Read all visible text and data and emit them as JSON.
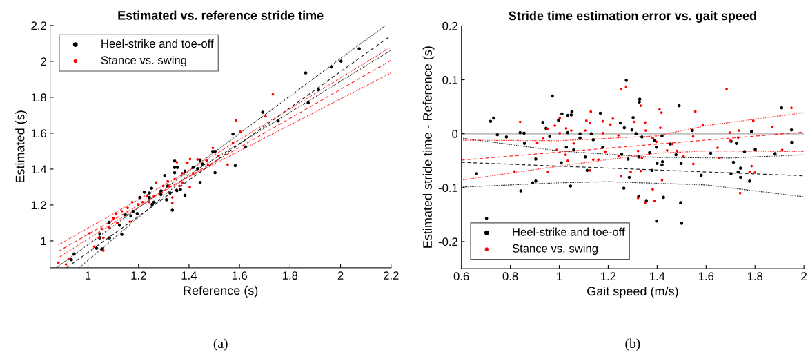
{
  "chart_data": [
    {
      "type": "scatter",
      "title": "Estimated vs. reference stride time",
      "xlabel": "Reference (s)",
      "ylabel": "Estimated (s)",
      "annotations": [
        "(a)"
      ],
      "xlim": [
        0.85,
        2.2
      ],
      "ylim": [
        0.85,
        2.2
      ],
      "xticks": [
        1,
        1.2,
        1.4,
        1.6,
        1.8,
        2,
        2.2
      ],
      "yticks": [
        1,
        1.2,
        1.4,
        1.6,
        1.8,
        2,
        2.2
      ],
      "grid": false,
      "legend": "top left",
      "marker": "circle",
      "series": [
        {
          "type": "line",
          "color": "#000000",
          "line_style": "dotted",
          "marker": "none",
          "x": [
            0.874,
            1.4,
            2.177
          ],
          "values": [
            0.85,
            1.39,
            2.2
          ]
        },
        {
          "type": "line",
          "color": "#000000",
          "line_style": "dashed",
          "marker": "none",
          "x": [
            0.915,
            2.195
          ],
          "values": [
            0.85,
            2.139
          ]
        },
        {
          "type": "line",
          "color": "#000000",
          "line_style": "dotted",
          "marker": "none",
          "x": [
            0.965,
            1.4,
            2.2
          ],
          "values": [
            0.85,
            1.37,
            2.062
          ]
        },
        {
          "type": "line",
          "color": "#ff0000",
          "line_style": "dotted",
          "marker": "none",
          "x": [
            0.883,
            1.35,
            2.2
          ],
          "values": [
            0.978,
            1.35,
            2.08
          ]
        },
        {
          "type": "line",
          "color": "#ff0000",
          "line_style": "dashed",
          "marker": "none",
          "x": [
            0.883,
            2.2
          ],
          "values": [
            0.942,
            2.006
          ]
        },
        {
          "type": "line",
          "color": "#ff0000",
          "line_style": "dotted",
          "marker": "none",
          "x": [
            0.883,
            1.35,
            2.2
          ],
          "values": [
            0.907,
            1.32,
            1.936
          ]
        },
        {
          "name": "Heel-strike and toe-off",
          "color": "#000000",
          "x": [
            2.074,
            2.002,
            1.963,
            1.862,
            1.913,
            1.872,
            1.753,
            1.692,
            1.623,
            1.574,
            1.583,
            1.503,
            1.503,
            1.494,
            1.444,
            1.453,
            1.444,
            1.434,
            1.416,
            1.343,
            1.343,
            1.354,
            1.343,
            1.384,
            1.384,
            1.304,
            1.334,
            1.352,
            1.325,
            1.311,
            1.289,
            1.252,
            1.243,
            1.254,
            1.223,
            1.205,
            1.195,
            1.17,
            1.125,
            1.134,
            1.085,
            1.047,
            1.034,
            1.055,
            0.934,
            0.945,
            1.084,
            1.148,
            1.289,
            1.316,
            1.366,
            1.261,
            1.243,
            1.047,
            1.179
          ],
          "values": [
            2.071,
            2.001,
            1.968,
            1.936,
            1.842,
            1.769,
            1.668,
            1.717,
            1.524,
            1.595,
            1.419,
            1.38,
            1.499,
            1.499,
            1.45,
            1.428,
            1.325,
            1.402,
            1.409,
            1.445,
            1.409,
            1.409,
            1.38,
            1.389,
            1.254,
            1.364,
            1.171,
            1.28,
            1.267,
            1.229,
            1.258,
            1.293,
            1.267,
            1.203,
            1.271,
            1.242,
            1.152,
            1.139,
            1.087,
            1.036,
            1.017,
            1.039,
            0.959,
            0.955,
            0.895,
            0.927,
            1.103,
            1.145,
            1.278,
            1.306,
            1.287,
            1.216,
            1.242,
            1.017,
            1.165
          ]
        },
        {
          "name": "Stance vs. swing",
          "color": "#ff0000",
          "x": [
            1.732,
            1.703,
            1.585,
            1.603,
            1.574,
            1.553,
            1.494,
            1.515,
            1.475,
            1.434,
            1.404,
            1.394,
            1.352,
            1.416,
            1.373,
            1.403,
            1.334,
            1.343,
            1.316,
            1.298,
            1.27,
            1.261,
            1.234,
            1.216,
            1.198,
            1.175,
            1.157,
            1.134,
            1.111,
            1.101,
            1.116,
            1.084,
            1.054,
            1.061,
            1.061,
            1.025,
            1.006,
            0.924,
            0.913,
            0.883,
            1.334,
            1.362,
            1.375,
            1.243,
            1.166,
            1.043,
            1.47,
            1.32
          ],
          "values": [
            1.817,
            1.694,
            1.672,
            1.608,
            1.546,
            1.425,
            1.518,
            1.473,
            1.422,
            1.454,
            1.456,
            1.434,
            1.438,
            1.377,
            1.377,
            1.299,
            1.21,
            1.344,
            1.332,
            1.306,
            1.325,
            1.248,
            1.248,
            1.216,
            1.203,
            1.216,
            1.184,
            1.165,
            1.152,
            1.126,
            1.1,
            1.075,
            1.068,
            1.017,
            0.946,
            0.968,
            1.042,
            0.901,
            0.869,
            0.879,
            1.242,
            1.306,
            1.325,
            1.216,
            1.107,
            1.017,
            1.447,
            1.306
          ]
        }
      ]
    },
    {
      "type": "scatter",
      "title": "Stride time estimation error vs. gait speed",
      "xlabel": "Gait speed (m/s)",
      "ylabel": "Estimated stride time - Reference (s)",
      "annotations": [
        "(b)"
      ],
      "xlim": [
        0.6,
        2
      ],
      "ylim": [
        -0.25,
        0.2
      ],
      "xticks": [
        0.6,
        0.8,
        1,
        1.2,
        1.4,
        1.6,
        1.8,
        2
      ],
      "yticks": [
        -0.2,
        -0.1,
        0,
        0.1,
        0.2
      ],
      "grid": false,
      "legend": "bottom left",
      "marker": "circle",
      "ref_lines": [
        {
          "axis": "y",
          "value": 0,
          "color": "#c0c0c0"
        }
      ],
      "series": [
        {
          "type": "line",
          "color": "#000000",
          "line_style": "dotted",
          "marker": "none",
          "x": [
            0.6,
            1.0,
            1.4,
            1.7,
            2.0
          ],
          "values": [
            -0.008,
            -0.032,
            -0.044,
            -0.045,
            -0.039
          ]
        },
        {
          "type": "line",
          "color": "#000000",
          "line_style": "dashed",
          "marker": "none",
          "x": [
            0.6,
            2.0
          ],
          "values": [
            -0.053,
            -0.078
          ]
        },
        {
          "type": "line",
          "color": "#000000",
          "line_style": "dotted",
          "marker": "none",
          "x": [
            0.6,
            1.0,
            1.2,
            1.6,
            2.0
          ],
          "values": [
            -0.099,
            -0.091,
            -0.089,
            -0.095,
            -0.117
          ]
        },
        {
          "type": "line",
          "color": "#ff0000",
          "line_style": "dotted",
          "marker": "none",
          "x": [
            0.6,
            1.0,
            1.4,
            1.6,
            2.0
          ],
          "values": [
            -0.012,
            -0.013,
            -0.004,
            0.015,
            0.039
          ]
        },
        {
          "type": "line",
          "color": "#ff0000",
          "line_style": "dashed",
          "marker": "none",
          "x": [
            0.6,
            2.0
          ],
          "values": [
            -0.049,
            0.003
          ]
        },
        {
          "type": "line",
          "color": "#ff0000",
          "line_style": "dotted",
          "marker": "none",
          "x": [
            0.6,
            1.0,
            1.4,
            1.6,
            2.0
          ],
          "values": [
            -0.086,
            -0.06,
            -0.036,
            -0.032,
            -0.033
          ]
        },
        {
          "name": "Heel-strike and toe-off",
          "color": "#000000",
          "x": [
            0.662,
            0.719,
            0.732,
            0.747,
            0.784,
            0.703,
            0.843,
            0.84,
            0.856,
            0.858,
            0.891,
            0.904,
            0.904,
            0.933,
            0.946,
            0.972,
            0.961,
            0.997,
            1.011,
            1.008,
            1.035,
            1.049,
            1.052,
            1.035,
            1.029,
            1.046,
            1.059,
            1.085,
            1.085,
            1.106,
            1.114,
            1.131,
            1.139,
            1.168,
            1.178,
            1.25,
            1.255,
            1.266,
            1.274,
            1.264,
            1.281,
            1.286,
            1.297,
            1.302,
            1.314,
            1.325,
            1.327,
            1.329,
            1.325,
            1.338,
            1.356,
            1.369,
            1.379,
            1.389,
            1.397,
            1.4,
            1.398,
            1.42,
            1.42,
            1.422,
            1.426,
            1.454,
            1.477,
            1.49,
            1.496,
            1.498,
            1.5,
            1.544,
            1.58,
            1.619,
            1.702,
            1.712,
            1.724,
            1.702,
            1.731,
            1.741,
            1.741,
            1.757,
            1.778,
            1.786,
            1.801,
            1.882,
            1.909,
            1.949,
            1.95
          ],
          "values": [
            -0.074,
            0.023,
            0.029,
            -0.002,
            -0.006,
            -0.157,
            -0.106,
            0.002,
            0.001,
            -0.018,
            -0.091,
            -0.088,
            -0.047,
            0.021,
            0.01,
            0.07,
            -0.005,
            0.025,
            0.037,
            -0.054,
            0.034,
            0.035,
            0.041,
            0.002,
            -0.025,
            -0.097,
            -0.03,
            0.0,
            -0.008,
            -0.043,
            -0.068,
            0.0,
            -0.011,
            0.038,
            -0.025,
            0.02,
            -0.038,
            0.011,
            0.099,
            -0.101,
            -0.047,
            -0.081,
            0.007,
            0.03,
            0.0,
            -0.043,
            0.059,
            0.064,
            -0.116,
            -0.006,
            -0.124,
            -0.035,
            -0.068,
            -0.012,
            -0.025,
            -0.055,
            -0.162,
            -0.004,
            -0.058,
            -0.052,
            -0.118,
            -0.019,
            -0.039,
            0.052,
            -0.128,
            -0.055,
            -0.166,
            0.006,
            -0.077,
            -0.036,
            -0.014,
            -0.053,
            -0.018,
            -0.074,
            -0.071,
            -0.064,
            -0.081,
            -0.033,
            -0.088,
            0.004,
            -0.029,
            -0.037,
            0.048,
            0.007,
            -0.016
          ]
        },
        {
          "name": "Stance vs. swing",
          "color": "#ff0000",
          "x": [
            0.817,
            0.84,
            0.91,
            0.935,
            0.954,
            0.954,
            0.982,
            1.002,
            1.002,
            0.99,
            1.028,
            1.026,
            1.035,
            1.049,
            1.059,
            1.106,
            1.111,
            1.126,
            1.129,
            1.126,
            1.139,
            1.16,
            1.178,
            1.178,
            1.188,
            1.209,
            1.219,
            1.242,
            1.242,
            1.253,
            1.273,
            1.253,
            1.292,
            1.307,
            1.322,
            1.333,
            1.333,
            1.322,
            1.338,
            1.351,
            1.351,
            1.353,
            1.382,
            1.382,
            1.389,
            1.397,
            1.41,
            1.418,
            1.413,
            1.42,
            1.441,
            1.462,
            1.48,
            1.508,
            1.547,
            1.548,
            1.556,
            1.587,
            1.647,
            1.655,
            1.684,
            1.697,
            1.699,
            1.731,
            1.734,
            1.739,
            1.778,
            1.786,
            1.793,
            1.8,
            1.871,
            1.911,
            1.949
          ],
          "values": [
            -0.07,
            0.022,
            -0.017,
            -0.009,
            0.009,
            -0.071,
            0.015,
            0.029,
            0.001,
            -0.03,
            0.01,
            -0.039,
            -0.05,
            0.006,
            -0.018,
            0.006,
            0.024,
            0.02,
            0.041,
            -0.068,
            -0.048,
            -0.048,
            0.023,
            0.001,
            -0.033,
            0.017,
            0.028,
            -0.003,
            -0.041,
            0.083,
            0.087,
            -0.079,
            -0.071,
            0.022,
            -0.032,
            0.052,
            -0.069,
            -0.119,
            -0.045,
            0.021,
            -0.128,
            0.006,
            -0.008,
            -0.103,
            -0.125,
            -0.015,
            0.045,
            0.039,
            0.011,
            -0.086,
            -0.031,
            -0.019,
            -0.032,
            -0.042,
            -0.005,
            -0.056,
            0.041,
            0.016,
            -0.026,
            -0.045,
            0.083,
            0.002,
            -0.013,
            -0.007,
            0.006,
            -0.11,
            -0.071,
            -0.06,
            0.024,
            -0.072,
            0.013,
            -0.03,
            0.048
          ]
        }
      ]
    }
  ]
}
